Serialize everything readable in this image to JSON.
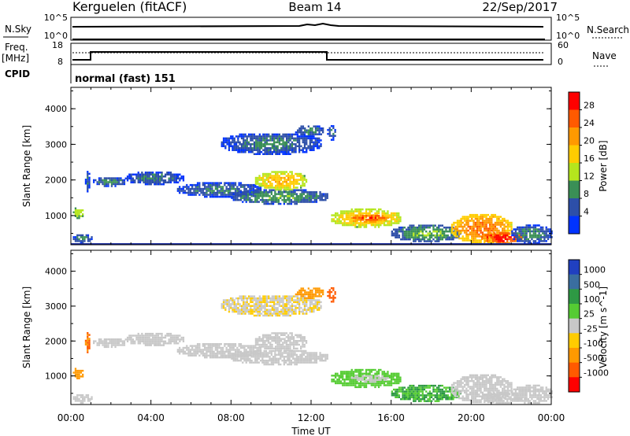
{
  "header": {
    "radar": "Kerguelen (fitACF)",
    "beam": "Beam 14",
    "date": "22/Sep/2017"
  },
  "strips": {
    "nsky_label": "N.Sky",
    "nsky_ticks": [
      "10^5",
      "10^0"
    ],
    "nsearch_label": "N.Search",
    "nsearch_ticks": [
      "10^5",
      "10^0"
    ],
    "freq_label_1": "Freq.",
    "freq_label_2": "[MHz]",
    "freq_ticks": [
      "18",
      "8"
    ],
    "nave_label": "Nave",
    "nave_ticks": [
      "60",
      "0"
    ],
    "cpid_label": "CPID",
    "cpid_text": "normal (fast) 151"
  },
  "axes": {
    "ylabel": "Slant Range [km]",
    "xlabel": "Time UT",
    "y_ticks": [
      "4000",
      "3000",
      "2000",
      "1000"
    ],
    "x_ticks": [
      "00:00",
      "04:00",
      "08:00",
      "12:00",
      "16:00",
      "20:00",
      "00:00"
    ]
  },
  "power_scale": {
    "label": "Power [dB]",
    "ticks": [
      "28",
      "24",
      "20",
      "16",
      "12",
      "8",
      "4"
    ],
    "colors": [
      "#ff0000",
      "#ff5a00",
      "#ff9900",
      "#ffcc00",
      "#b5e61d",
      "#3a8f56",
      "#2d4fa8",
      "#0033ff"
    ]
  },
  "velocity_scale": {
    "label": "Velocity [m s^-1]",
    "ticks": [
      "1000",
      "500",
      "100",
      "25",
      "-25",
      "-100",
      "-500",
      "-1000"
    ],
    "colors": [
      "#2040c0",
      "#3a6ea0",
      "#2e9944",
      "#55cc33",
      "#c8c8c8",
      "#ffcc00",
      "#ff9900",
      "#ff5a00",
      "#ff0000"
    ]
  },
  "chart_data": {
    "type": "heatmap",
    "x_range_hours": [
      0,
      24
    ],
    "y_range_km": [
      180,
      4600
    ],
    "frequency_MHz": [
      {
        "from_hour": 0,
        "to_hour": 1,
        "value": 10.5
      },
      {
        "from_hour": 1,
        "to_hour": 13,
        "value": 12.5
      },
      {
        "from_hour": 13,
        "to_hour": 24,
        "value": 10.5
      }
    ],
    "echo_regions": [
      {
        "t": [
          0.1,
          1.0
        ],
        "r": [
          200,
          450
        ],
        "power": 10,
        "velocity": 0
      },
      {
        "t": [
          0.1,
          0.6
        ],
        "r": [
          900,
          1200
        ],
        "power": 16,
        "velocity": -200
      },
      {
        "t": [
          0.7,
          0.9
        ],
        "r": [
          1650,
          2250
        ],
        "power": 8,
        "velocity": -500
      },
      {
        "t": [
          1.1,
          2.7
        ],
        "r": [
          1800,
          2050
        ],
        "power": 10,
        "velocity": 0
      },
      {
        "t": [
          2.7,
          5.6
        ],
        "r": [
          1850,
          2200
        ],
        "power": 9,
        "velocity": 0
      },
      {
        "t": [
          5.3,
          9.5
        ],
        "r": [
          1500,
          1900
        ],
        "power": 9,
        "velocity": 0
      },
      {
        "t": [
          8.0,
          12.8
        ],
        "r": [
          1300,
          1700
        ],
        "power": 11,
        "velocity": 5
      },
      {
        "t": [
          9.2,
          11.8
        ],
        "r": [
          1700,
          2200
        ],
        "power": 20,
        "velocity": 0
      },
      {
        "t": [
          7.5,
          12.5
        ],
        "r": [
          2700,
          3300
        ],
        "power": 9,
        "velocity": -20
      },
      {
        "t": [
          11.2,
          12.6
        ],
        "r": [
          3200,
          3500
        ],
        "power": 10,
        "velocity": -300
      },
      {
        "t": [
          12.8,
          13.2
        ],
        "r": [
          3100,
          3500
        ],
        "power": 8,
        "velocity": -600
      },
      {
        "t": [
          13.0,
          16.5
        ],
        "r": [
          650,
          1150
        ],
        "power": 20,
        "velocity": 60
      },
      {
        "t": [
          14.0,
          15.8
        ],
        "r": [
          800,
          1000
        ],
        "power": 28,
        "velocity": 0
      },
      {
        "t": [
          16.0,
          19.5
        ],
        "r": [
          250,
          700
        ],
        "power": 12,
        "velocity": 100
      },
      {
        "t": [
          19.0,
          22.0
        ],
        "r": [
          220,
          1000
        ],
        "power": 24,
        "velocity": 0
      },
      {
        "t": [
          20.5,
          22.5
        ],
        "r": [
          200,
          500
        ],
        "power": 30,
        "velocity": 0
      },
      {
        "t": [
          22.0,
          24.0
        ],
        "r": [
          200,
          700
        ],
        "power": 10,
        "velocity": 0
      }
    ]
  }
}
